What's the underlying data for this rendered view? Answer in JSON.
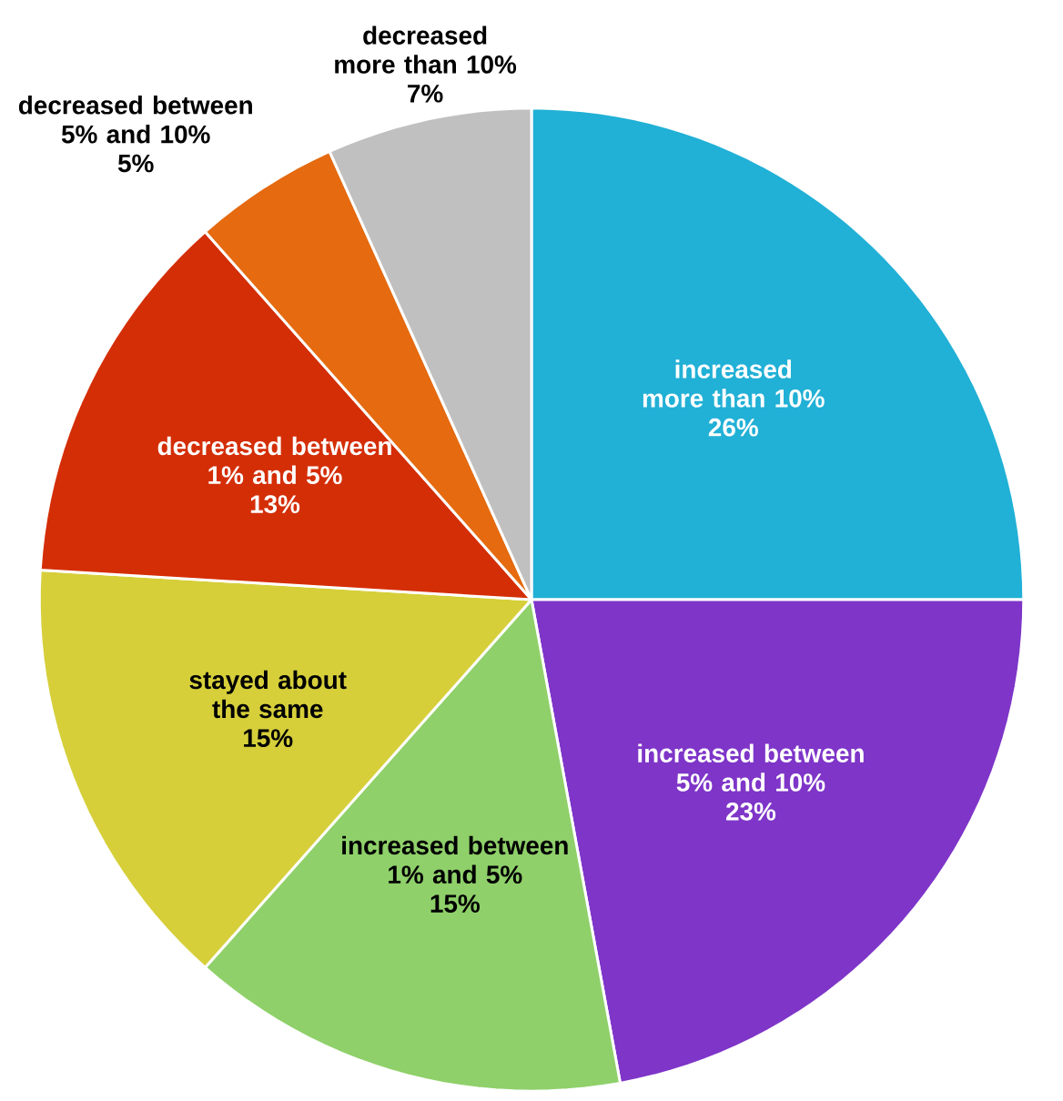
{
  "chart_data": {
    "type": "pie",
    "categories": [
      "increased more than 10%",
      "increased between 5% and 10%",
      "increased between 1% and 5%",
      "stayed about the same",
      "decreased between 1% and 5%",
      "decreased between 5% and 10%",
      "decreased more than 10%"
    ],
    "values": [
      26,
      23,
      15,
      15,
      13,
      5,
      7
    ],
    "value_labels": [
      "26%",
      "23%",
      "15%",
      "15%",
      "13%",
      "5%",
      "7%"
    ],
    "colors": [
      "#21b0d6",
      "#7e35c8",
      "#8fd06a",
      "#d6cf3a",
      "#d42e06",
      "#e56a10",
      "#c0c0c0"
    ]
  }
}
